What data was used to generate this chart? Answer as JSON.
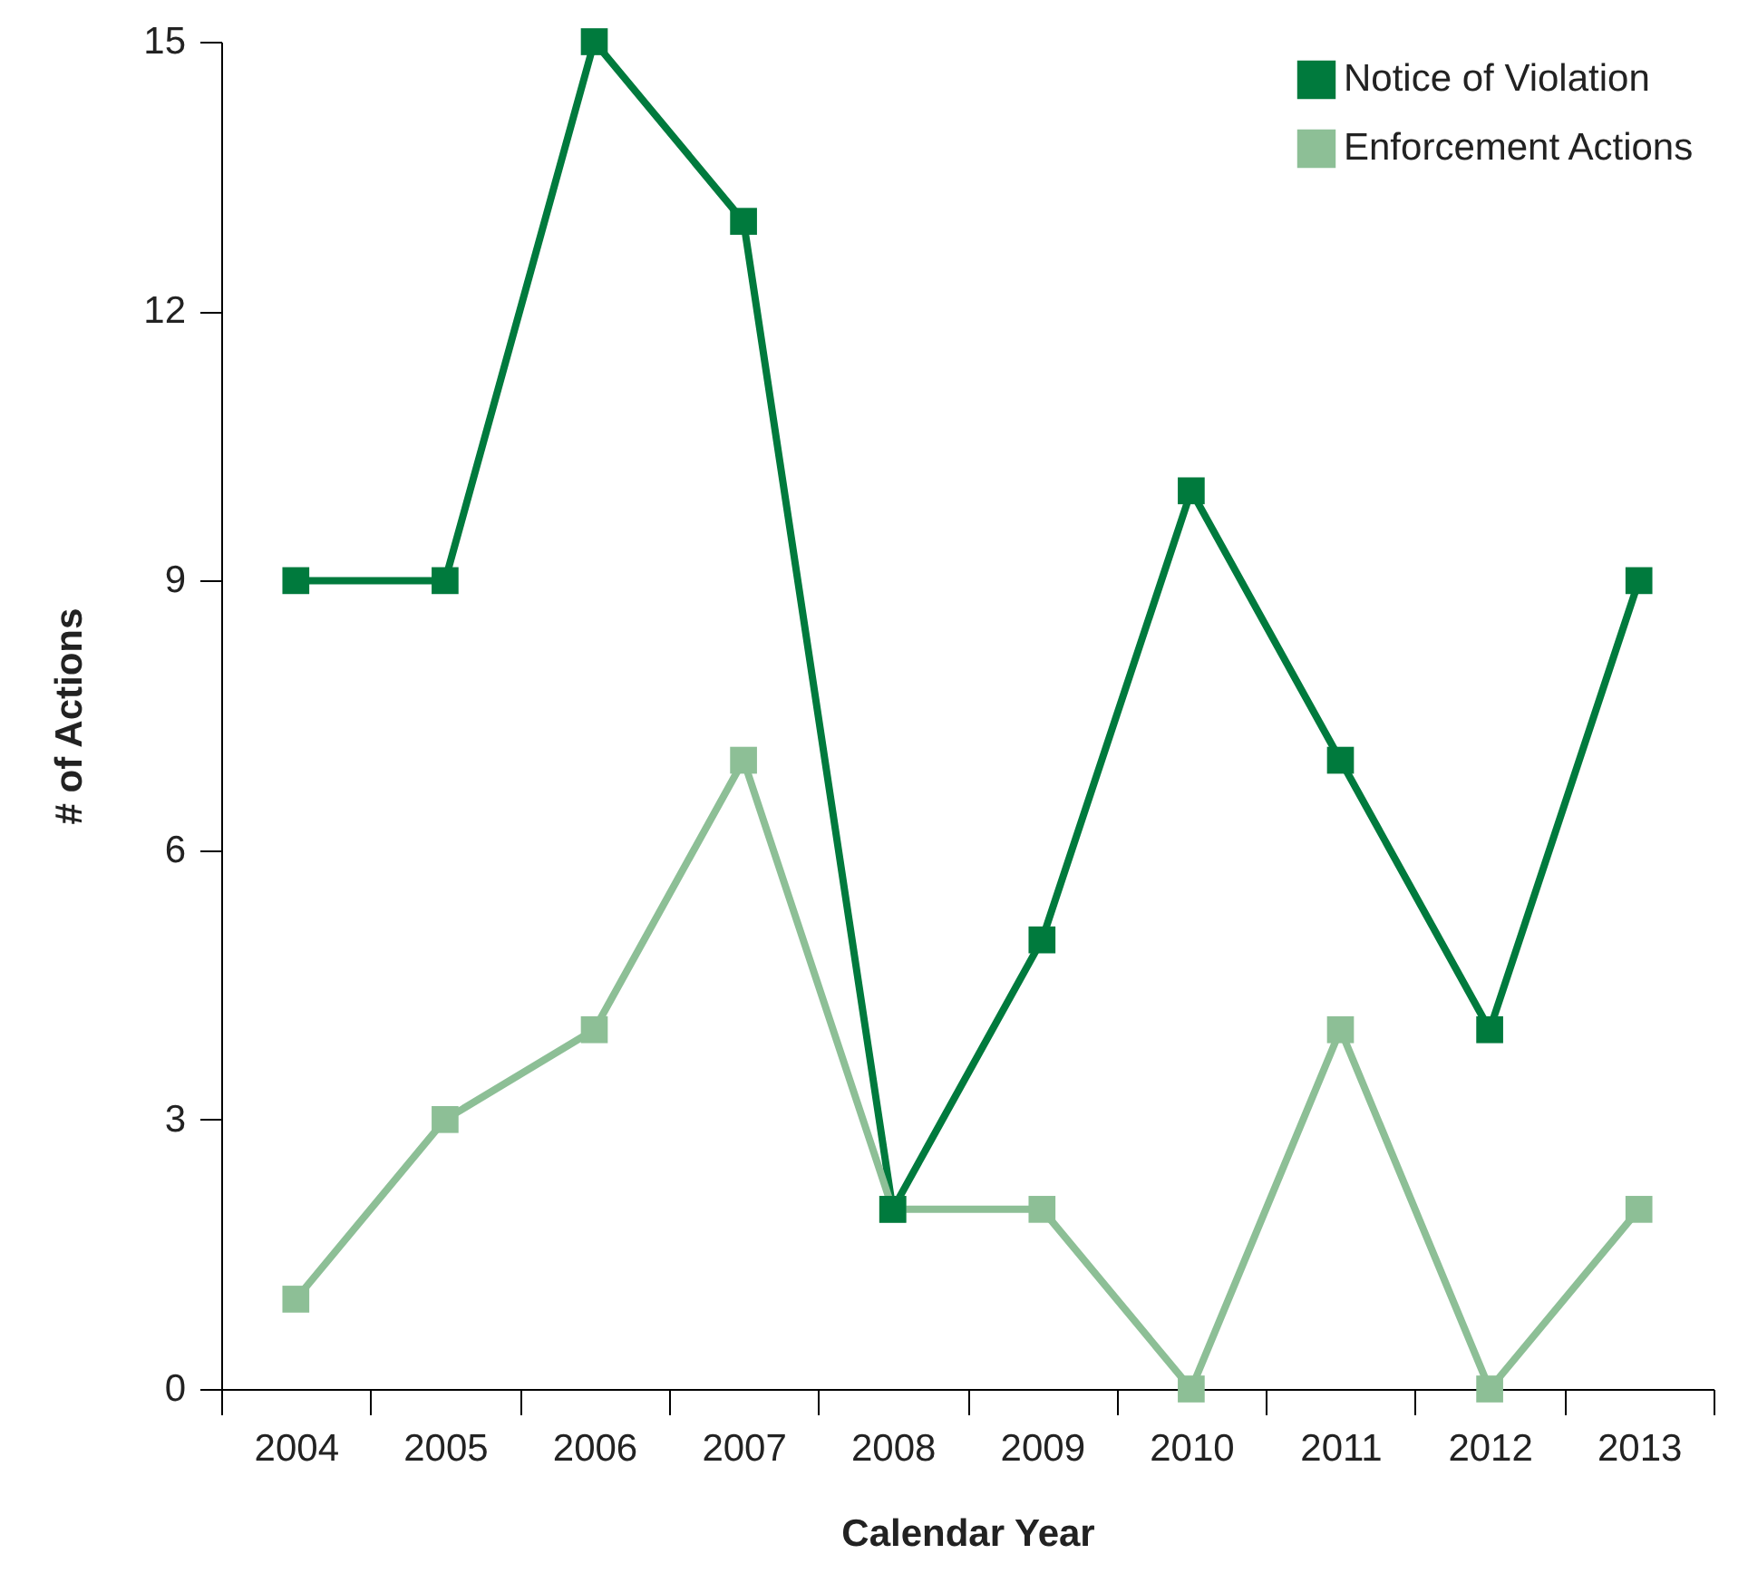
{
  "chart_data": {
    "type": "line",
    "xlabel": "Calendar Year",
    "ylabel": "# of Actions",
    "categories": [
      "2004",
      "2005",
      "2006",
      "2007",
      "2008",
      "2009",
      "2010",
      "2011",
      "2012",
      "2013"
    ],
    "series": [
      {
        "name": "Notice of Violation",
        "color": "#007a3d",
        "values": [
          9,
          9,
          15,
          13,
          2,
          5,
          10,
          7,
          4,
          9
        ]
      },
      {
        "name": "Enforcement Actions",
        "color": "#8dbf96",
        "values": [
          1,
          3,
          4,
          7,
          2,
          2,
          0,
          4,
          0,
          2
        ]
      }
    ],
    "ylim": [
      0,
      15
    ],
    "yticks": [
      0,
      3,
      6,
      9,
      12,
      15
    ],
    "grid": false,
    "legend": "top right",
    "marker": "square",
    "line_style": "solid"
  }
}
